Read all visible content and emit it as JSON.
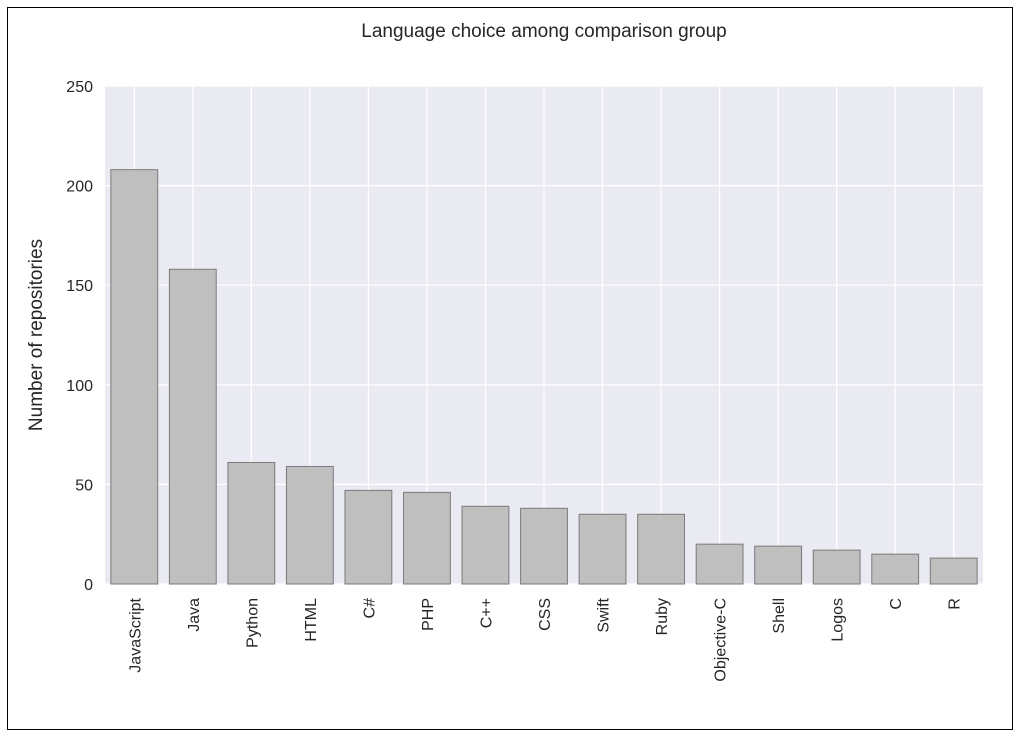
{
  "chart_data": {
    "type": "bar",
    "title": "Language choice among comparison group",
    "xlabel": "",
    "ylabel": "Number of repositories",
    "categories": [
      "JavaScript",
      "Java",
      "Python",
      "HTML",
      "C#",
      "PHP",
      "C++",
      "CSS",
      "Swift",
      "Ruby",
      "Objective-C",
      "Shell",
      "Logos",
      "C",
      "R"
    ],
    "values": [
      208,
      158,
      61,
      59,
      47,
      46,
      39,
      38,
      35,
      35,
      20,
      19,
      17,
      15,
      13
    ],
    "ylim": [
      0,
      250
    ],
    "yticks": [
      "0",
      "50",
      "100",
      "150",
      "200",
      "250"
    ],
    "grid": true,
    "legend": "none",
    "colors": {
      "bar_fill": "#bfbfbf",
      "bar_edge": "#7a7a7a",
      "plot_bg": "#eaeaf2",
      "grid": "#ffffff"
    }
  }
}
